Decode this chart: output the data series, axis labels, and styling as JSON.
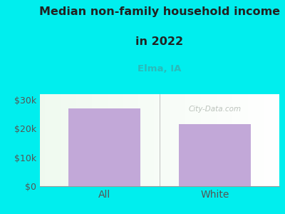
{
  "categories": [
    "All",
    "White"
  ],
  "values": [
    27000,
    21500
  ],
  "bar_color": "#c2a8d8",
  "title_line1": "Median non-family household income",
  "title_line2": "in 2022",
  "subtitle": "Elma, IA",
  "subtitle_color": "#2ababa",
  "title_color": "#222222",
  "bg_color": "#00eeee",
  "yticks": [
    0,
    10000,
    20000,
    30000
  ],
  "ytick_labels": [
    "$0",
    "$10k",
    "$20k",
    "$30k"
  ],
  "ylim": [
    0,
    32000
  ],
  "watermark": "City-Data.com",
  "axis_label_color": "#555555",
  "plot_left_color": "#e8f5e8",
  "plot_right_color": "#f8fff8"
}
